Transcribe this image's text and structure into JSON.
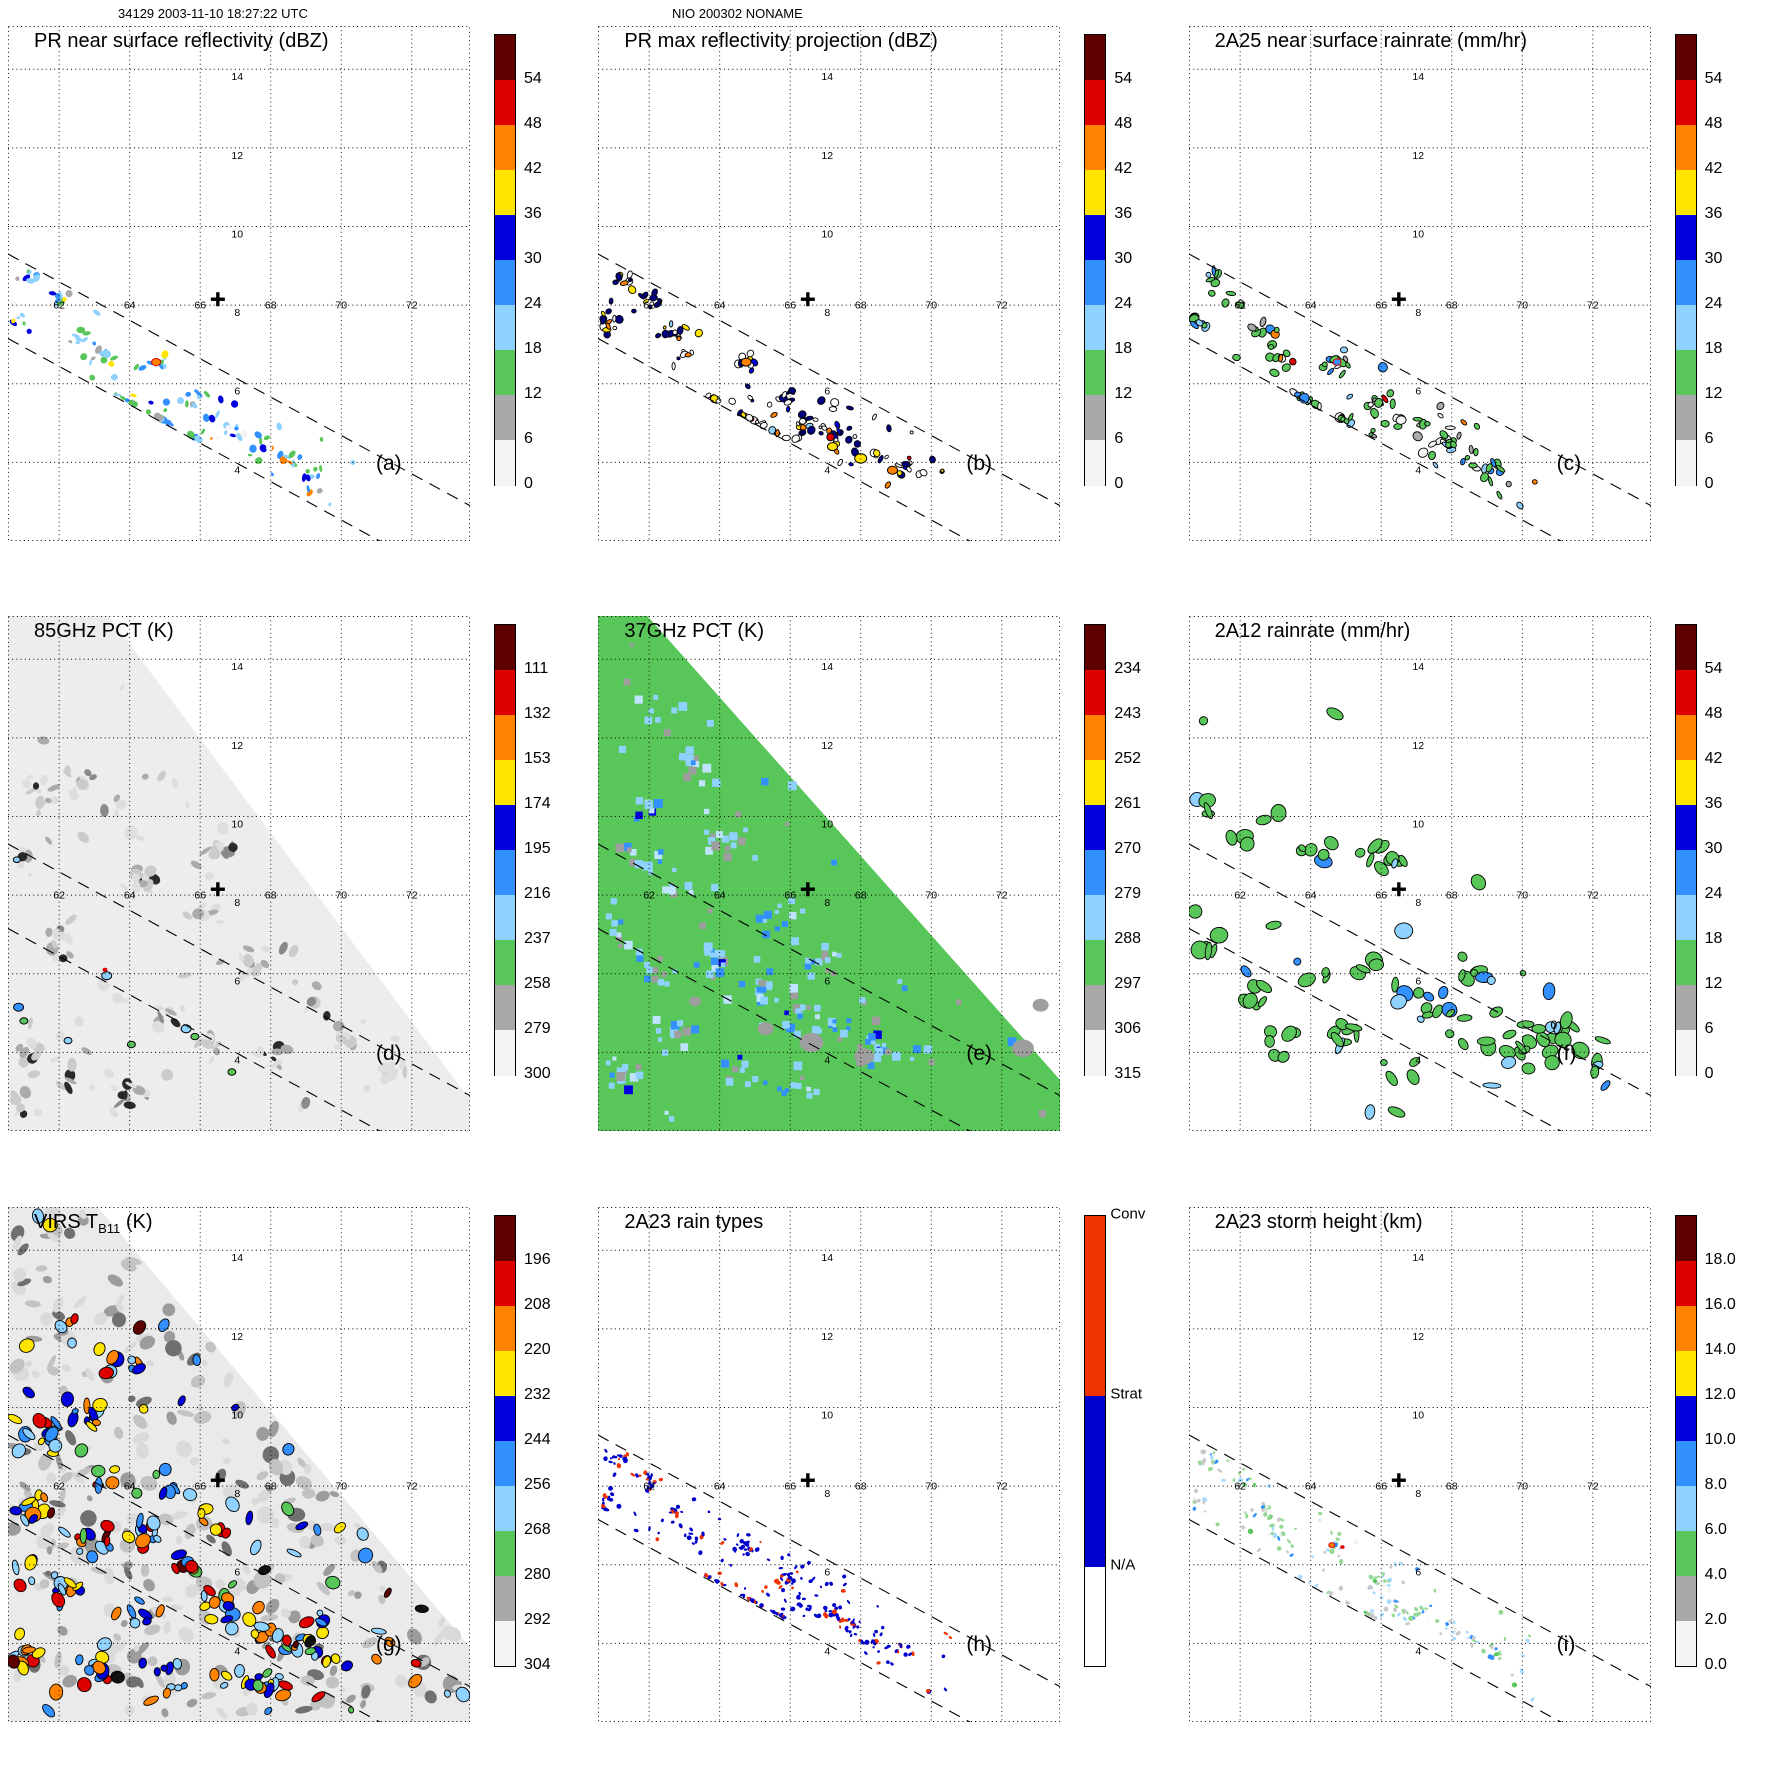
{
  "header": {
    "left": "34129 2003-11-10 18:27:22 UTC",
    "center": "NIO 200302 NONAME"
  },
  "colorbar_colors": [
    "#5e0000",
    "#df0000",
    "#ff8300",
    "#ffe400",
    "#0000de",
    "#3390ff",
    "#8fd2ff",
    "#59c659",
    "#a9a9a9",
    "#f4f4f4"
  ],
  "map": {
    "lon_range": [
      60.55,
      73.65
    ],
    "lat_range": [
      2.0,
      15.1
    ],
    "lon_ticks": [
      62,
      64,
      66,
      68,
      70,
      72
    ],
    "lat_ticks": [
      4,
      6,
      8,
      10,
      12,
      14
    ],
    "lon_label_lat": 8,
    "lat_label_lon": 67.05,
    "marker": {
      "lon": 66.5,
      "lat": 8.15,
      "symbol": "+"
    },
    "swath_upper": [
      [
        60.55,
        9.3
      ],
      [
        73.65,
        2.9
      ]
    ],
    "swath_lower": [
      [
        60.55,
        7.15
      ],
      [
        73.65,
        0.75
      ]
    ]
  },
  "clusters": {
    "swath": [
      [
        61.2,
        8.7
      ],
      [
        60.8,
        7.6
      ],
      [
        62.0,
        8.1
      ],
      [
        62.7,
        7.3
      ],
      [
        63.2,
        6.7
      ],
      [
        64.7,
        6.5
      ],
      [
        63.9,
        5.3
      ],
      [
        64.9,
        4.9
      ],
      [
        65.7,
        4.6
      ],
      [
        66.4,
        4.9
      ],
      [
        67.1,
        4.8
      ],
      [
        67.8,
        4.5
      ],
      [
        68.5,
        4.1
      ],
      [
        69.2,
        3.8
      ],
      [
        65.9,
        5.6
      ]
    ],
    "tri_d": [
      [
        61.5,
        10.6
      ],
      [
        62.6,
        10.9
      ],
      [
        63.5,
        9.9
      ],
      [
        61.0,
        9.0
      ],
      [
        64.5,
        8.4
      ],
      [
        66.0,
        7.5
      ],
      [
        67.5,
        6.3
      ],
      [
        69.0,
        5.3
      ],
      [
        70.3,
        4.4
      ],
      [
        62.0,
        6.8
      ],
      [
        63.5,
        5.5
      ],
      [
        65.0,
        5.0
      ],
      [
        66.5,
        4.2
      ],
      [
        68.0,
        3.8
      ],
      [
        61.0,
        4.0
      ],
      [
        62.5,
        3.3
      ],
      [
        64.0,
        2.9
      ],
      [
        71.5,
        3.6
      ],
      [
        60.9,
        2.6
      ],
      [
        66.5,
        9.2
      ]
    ],
    "tri_e": [
      [
        62.3,
        12.6
      ],
      [
        63.3,
        11.4
      ],
      [
        62.0,
        10.2
      ],
      [
        64.3,
        9.3
      ],
      [
        63.0,
        8.2
      ],
      [
        61.2,
        7.0
      ],
      [
        62.3,
        6.0
      ],
      [
        63.8,
        6.3
      ],
      [
        65.0,
        5.6
      ],
      [
        66.2,
        5.0
      ],
      [
        67.2,
        4.6
      ],
      [
        68.5,
        4.1
      ],
      [
        62.8,
        4.4
      ],
      [
        61.2,
        3.4
      ],
      [
        64.4,
        3.6
      ],
      [
        66.0,
        3.2
      ],
      [
        69.8,
        3.9
      ],
      [
        65.7,
        7.4
      ],
      [
        66.8,
        6.3
      ],
      [
        61.8,
        8.9
      ]
    ],
    "tri_f": [
      [
        61.2,
        10.3
      ],
      [
        62.4,
        9.6
      ],
      [
        64.3,
        9.2
      ],
      [
        66.3,
        8.9
      ],
      [
        61.0,
        6.5
      ],
      [
        62.5,
        5.5
      ],
      [
        64.0,
        6.0
      ],
      [
        65.5,
        6.3
      ],
      [
        66.7,
        5.5
      ],
      [
        67.8,
        4.9
      ],
      [
        69.0,
        4.3
      ],
      [
        70.0,
        3.9
      ],
      [
        63.2,
        4.2
      ],
      [
        65.0,
        4.5
      ],
      [
        66.3,
        3.7
      ],
      [
        71.0,
        4.6
      ],
      [
        72.0,
        3.9
      ],
      [
        68.5,
        6.0
      ],
      [
        65.8,
        9.0
      ]
    ],
    "tri_g": [
      [
        61.5,
        9.2
      ],
      [
        62.6,
        9.9
      ],
      [
        63.6,
        8.5
      ],
      [
        61.2,
        7.3
      ],
      [
        62.9,
        6.6
      ],
      [
        64.6,
        6.9
      ],
      [
        65.6,
        5.9
      ],
      [
        66.6,
        5.1
      ],
      [
        67.6,
        4.5
      ],
      [
        64.1,
        4.7
      ],
      [
        62.1,
        5.3
      ],
      [
        61.0,
        3.7
      ],
      [
        63.1,
        3.4
      ],
      [
        65.1,
        3.2
      ],
      [
        66.9,
        3.1
      ],
      [
        68.4,
        3.7
      ],
      [
        69.6,
        3.4
      ],
      [
        63.9,
        10.9
      ],
      [
        62.3,
        11.7
      ],
      [
        65.2,
        8.2
      ],
      [
        66.3,
        7.2
      ],
      [
        60.9,
        5.9
      ],
      [
        67.9,
        3.0
      ],
      [
        69.0,
        4.2
      ]
    ]
  },
  "chart_data": {
    "type": "heatmap",
    "layout": "3x3 satellite swath maps with vertical colorbars",
    "panels": [
      {
        "letter": "(a)",
        "title": "PR near surface reflectivity (dBZ)",
        "colorbar": {
          "type": "standard",
          "ticks": [
            "54",
            "48",
            "42",
            "36",
            "30",
            "24",
            "18",
            "12",
            "6",
            "0"
          ]
        },
        "render": {
          "seed": 11,
          "region": "swath",
          "count": 150,
          "rmin": 1.3,
          "rmax": 4.5,
          "clusters": "swath",
          "weights": {
            "#8fd2ff": 0.3,
            "#3390ff": 0.24,
            "#0000de": 0.07,
            "#59c659": 0.24,
            "#f4f4f4": 0.05,
            "#a9a9a9": 0.04,
            "#ffe400": 0.03,
            "#ff8300": 0.02,
            "#df0000": 0.01
          },
          "stroke": null,
          "features": [
            {
              "lon": 64.75,
              "lat": 6.55,
              "r": 4.5,
              "color": "#ff8300",
              "stroke": "#df0000"
            }
          ]
        }
      },
      {
        "letter": "(b)",
        "title": "PR max reflectivity projection (dBZ)",
        "colorbar": {
          "type": "standard",
          "ticks": [
            "54",
            "48",
            "42",
            "36",
            "30",
            "24",
            "18",
            "12",
            "6",
            "0"
          ]
        },
        "render": {
          "seed": 22,
          "region": "swath",
          "count": 160,
          "rmin": 1.3,
          "rmax": 4.2,
          "clusters": "swath",
          "weights": {
            "#ffffff": 0.34,
            "#000080": 0.26,
            "#0000de": 0.1,
            "#ffe400": 0.13,
            "#ff8300": 0.1,
            "#8fd2ff": 0.04,
            "#df0000": 0.03
          },
          "stroke": "#000000",
          "features": [
            {
              "lon": 64.75,
              "lat": 6.55,
              "r": 5,
              "color": "#ff8300",
              "stroke": "#000000"
            },
            {
              "lon": 68.0,
              "lat": 4.1,
              "r": 6,
              "color": "#ffe400",
              "stroke": "#000000"
            },
            {
              "lon": 68.9,
              "lat": 3.8,
              "r": 5,
              "color": "#ff8300",
              "stroke": "#000000"
            },
            {
              "lon": 67.2,
              "lat": 4.4,
              "r": 5,
              "color": "#ffe400",
              "stroke": "#000000"
            }
          ]
        }
      },
      {
        "letter": "(c)",
        "title": "2A25 near surface rainrate (mm/hr)",
        "colorbar": {
          "type": "standard",
          "ticks": [
            "54",
            "48",
            "42",
            "36",
            "30",
            "24",
            "18",
            "12",
            "6",
            "0"
          ]
        },
        "render": {
          "seed": 33,
          "region": "swath",
          "count": 140,
          "rmin": 1.6,
          "rmax": 5,
          "clusters": "swath",
          "weights": {
            "#59c659": 0.62,
            "#8fd2ff": 0.12,
            "#f4f4f4": 0.12,
            "#3390ff": 0.06,
            "#a9a9a9": 0.06,
            "#df0000": 0.01,
            "#ff8300": 0.01
          },
          "stroke": "#000000",
          "features": [
            {
              "lon": 64.75,
              "lat": 6.55,
              "r": 4,
              "color": "#3390ff",
              "stroke": "#df0000"
            }
          ]
        }
      },
      {
        "letter": "(d)",
        "title": "85GHz PCT (K)",
        "colorbar": {
          "type": "standard",
          "ticks": [
            "111",
            "132",
            "153",
            "174",
            "195",
            "216",
            "237",
            "258",
            "279",
            "300"
          ]
        },
        "render": {
          "seed": 66,
          "region": "triangle",
          "boundary": [
            [
              63.4,
              15.1
            ],
            [
              73.65,
              2.8
            ]
          ],
          "background": "#ededed",
          "count": 210,
          "rmin": 1.8,
          "rmax": 7,
          "clusters": "tri_d",
          "weights": {
            "#dedede": 0.36,
            "#cbcbcb": 0.28,
            "#ababab": 0.18,
            "#8a8a8a": 0.1,
            "#2a2a2a": 0.08
          },
          "stroke": null,
          "features": [
            {
              "lon": 60.85,
              "lat": 5.15,
              "r": 5,
              "color": "#3390ff",
              "stroke": "#000000"
            },
            {
              "lon": 61.0,
              "lat": 4.8,
              "r": 4,
              "color": "#59c659",
              "stroke": "#000000"
            },
            {
              "lon": 63.35,
              "lat": 5.95,
              "r": 5,
              "color": "#8fd2ff",
              "stroke": "#000000"
            },
            {
              "lon": 63.3,
              "lat": 6.1,
              "r": 2.5,
              "color": "#df0000",
              "stroke": null
            },
            {
              "lon": 64.05,
              "lat": 4.2,
              "r": 4,
              "color": "#59c659",
              "stroke": "#000000"
            },
            {
              "lon": 65.6,
              "lat": 4.6,
              "r": 5,
              "color": "#8fd2ff",
              "stroke": "#000000"
            },
            {
              "lon": 65.85,
              "lat": 4.4,
              "r": 4,
              "color": "#59c659",
              "stroke": "#000000"
            },
            {
              "lon": 66.9,
              "lat": 3.5,
              "r": 4,
              "color": "#59c659",
              "stroke": "#000000"
            },
            {
              "lon": 62.25,
              "lat": 4.3,
              "r": 4,
              "color": "#8fd2ff",
              "stroke": "#000000"
            },
            {
              "lon": 60.8,
              "lat": 8.9,
              "r": 3.5,
              "color": "#8fd2ff",
              "stroke": "#000000"
            }
          ]
        }
      },
      {
        "letter": "(e)",
        "title": "37GHz PCT (K)",
        "colorbar": {
          "type": "standard",
          "ticks": [
            "234",
            "243",
            "252",
            "261",
            "270",
            "279",
            "288",
            "297",
            "306",
            "315"
          ]
        },
        "render": {
          "seed": 77,
          "region": "triangle",
          "boundary": [
            [
              61.95,
              15.1
            ],
            [
              73.65,
              3.3
            ]
          ],
          "background": "#59c659",
          "count": 260,
          "rmin": 2,
          "rmax": 4.5,
          "shape": "square",
          "clusters": "tri_e",
          "weights": {
            "#8fd2ff": 0.4,
            "#bfe4ff": 0.1,
            "#3390ff": 0.17,
            "#0000de": 0.05,
            "#9e9e9e": 0.28
          },
          "stroke": null,
          "features": [
            {
              "lon": 66.6,
              "lat": 4.25,
              "r": 12,
              "color": "#9e9e9e",
              "stroke": null
            },
            {
              "lon": 68.1,
              "lat": 3.9,
              "r": 10,
              "color": "#9e9e9e",
              "stroke": null
            },
            {
              "lon": 65.3,
              "lat": 4.6,
              "r": 8,
              "color": "#9e9e9e",
              "stroke": null
            },
            {
              "lon": 72.6,
              "lat": 4.1,
              "r": 11,
              "color": "#9e9e9e",
              "stroke": null
            },
            {
              "lon": 73.1,
              "lat": 5.2,
              "r": 8,
              "color": "#9e9e9e",
              "stroke": null
            },
            {
              "lon": 63.3,
              "lat": 5.3,
              "r": 6,
              "color": "#9e9e9e",
              "stroke": null
            }
          ]
        }
      },
      {
        "letter": "(f)",
        "title": "2A12 rainrate (mm/hr)",
        "colorbar": {
          "type": "standard",
          "ticks": [
            "54",
            "48",
            "42",
            "36",
            "30",
            "24",
            "18",
            "12",
            "6",
            "0"
          ]
        },
        "render": {
          "seed": 99,
          "region": "triangle",
          "boundary": [
            [
              63.1,
              15.1
            ],
            [
              73.65,
              3.6
            ]
          ],
          "background": null,
          "count": 130,
          "rmin": 2.5,
          "rmax": 9,
          "clusters": "tri_f",
          "weights": {
            "#59c659": 0.8,
            "#8fd2ff": 0.12,
            "#3390ff": 0.08
          },
          "stroke": "#000000",
          "texts": [
            {
              "lon": 70.8,
              "lat": 4.6,
              "text": "0"
            }
          ]
        }
      },
      {
        "letter": "(g)",
        "title_pre": "VIRS T",
        "title_sub": "B11",
        "title_post": " (K)",
        "colorbar": {
          "type": "standard",
          "ticks": [
            "196",
            "208",
            "220",
            "232",
            "244",
            "256",
            "268",
            "280",
            "292",
            "304"
          ]
        },
        "render": {
          "seed": 88,
          "region": "triangle",
          "boundary": [
            [
              63.1,
              15.1
            ],
            [
              73.65,
              3.9
            ]
          ],
          "background": "#eaeaea",
          "layers": [
            {
              "seed": 88,
              "count": 280,
              "rmin": 2.5,
              "rmax": 9,
              "clusters": null,
              "weights": {
                "#dadada": 0.38,
                "#c2c2c2": 0.3,
                "#9c9c9c": 0.2,
                "#707070": 0.12
              },
              "stroke": null
            },
            {
              "seed": 89,
              "count": 260,
              "rmin": 2.5,
              "rmax": 8,
              "clusters": "tri_g",
              "weights": {
                "#8fd2ff": 0.2,
                "#3390ff": 0.16,
                "#0000de": 0.15,
                "#59c659": 0.09,
                "#ffe400": 0.13,
                "#ff8300": 0.12,
                "#df0000": 0.1,
                "#5e0000": 0.03,
                "#111111": 0.02
              },
              "stroke": "#000000"
            }
          ]
        }
      },
      {
        "letter": "(h)",
        "title": "2A23 rain types",
        "colorbar": {
          "type": "raintype",
          "segments": [
            {
              "label": "Conv",
              "color": "#ee3300",
              "frac": 0.4
            },
            {
              "label": "Strat",
              "color": "#0000cc",
              "frac": 0.38
            },
            {
              "label": "N/A",
              "color": "#ffffff",
              "frac": 0.22
            }
          ]
        },
        "render": {
          "seed": 44,
          "region": "swath",
          "count": 280,
          "rmin": 1.0,
          "rmax": 2.6,
          "clusters": "swath",
          "weights": {
            "#0000cc": 0.72,
            "#ee3300": 0.28
          },
          "stroke": null
        }
      },
      {
        "letter": "(i)",
        "title": "2A23 storm height (km)",
        "colorbar": {
          "type": "standard",
          "ticks": [
            "18.0",
            "16.0",
            "14.0",
            "12.0",
            "10.0",
            "8.0",
            "6.0",
            "4.0",
            "2.0",
            "0.0"
          ]
        },
        "render": {
          "seed": 55,
          "region": "swath",
          "count": 210,
          "rmin": 1.0,
          "rmax": 2.8,
          "clusters": "swath",
          "weights": {
            "#a9dcff": 0.26,
            "#93d893": 0.3,
            "#c9c9c9": 0.24,
            "#3390ff": 0.08,
            "#59c659": 0.07,
            "#f4f4f4": 0.05
          },
          "stroke": null,
          "features": [
            {
              "lon": 64.6,
              "lat": 6.5,
              "r": 3,
              "color": "#ff8300",
              "stroke": "#df0000"
            },
            {
              "lon": 64.9,
              "lat": 6.45,
              "r": 2.2,
              "color": "#df0000",
              "stroke": null
            }
          ]
        }
      }
    ]
  }
}
